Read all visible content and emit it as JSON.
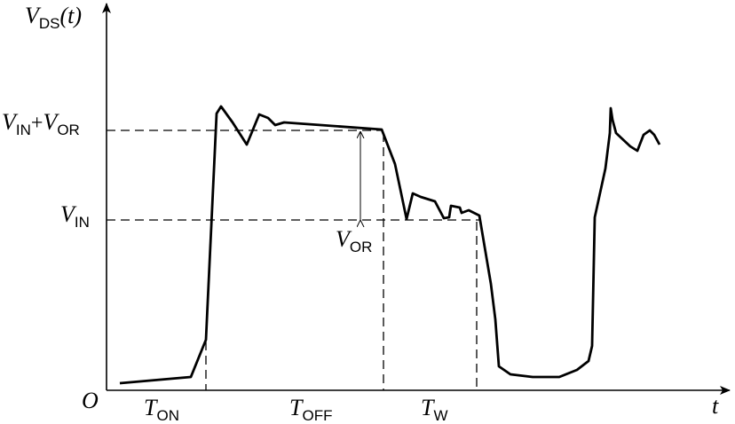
{
  "y_axis_label": {
    "symbol": "V",
    "subscript": "DS",
    "argument": "(t)"
  },
  "x_axis_label": "t",
  "origin_label": "O",
  "levels": [
    {
      "symbol": "V",
      "subscript": "IN",
      "operator": "+",
      "symbol2": "V",
      "subscript2": "OR"
    },
    {
      "symbol": "V",
      "subscript": "IN"
    }
  ],
  "gap_label": {
    "symbol": "V",
    "subscript": "OR"
  },
  "intervals": [
    {
      "symbol": "T",
      "subscript": "ON"
    },
    {
      "symbol": "T",
      "subscript": "OFF"
    },
    {
      "symbol": "T",
      "subscript": "W"
    }
  ]
}
